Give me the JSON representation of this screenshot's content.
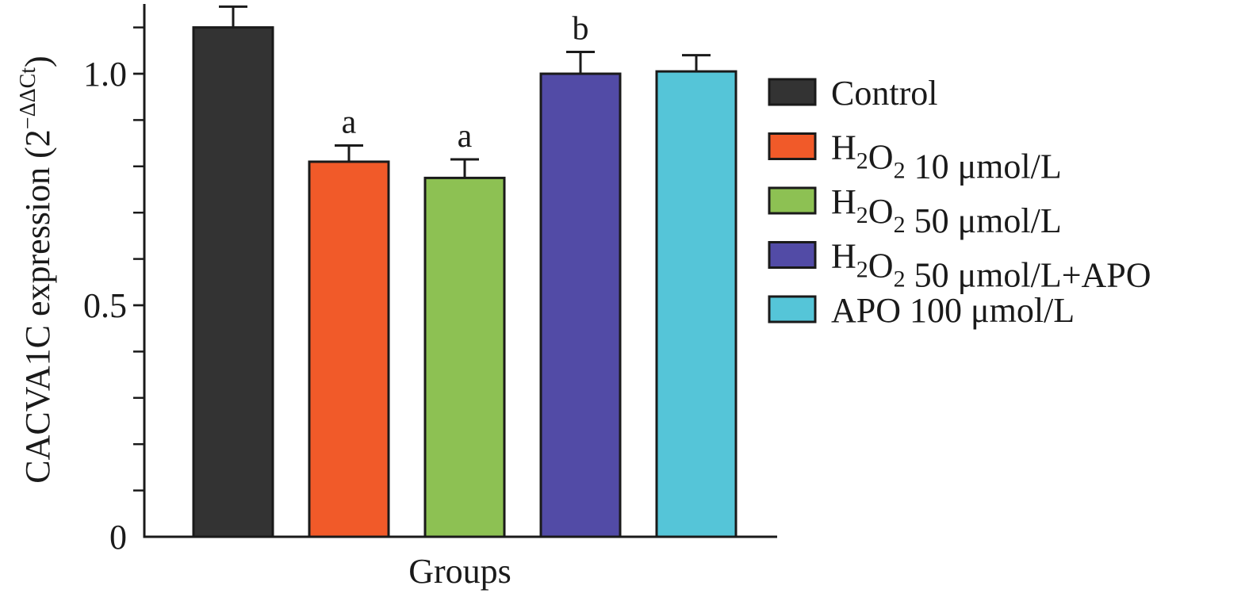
{
  "chart_data": {
    "type": "bar",
    "xlabel": "Groups",
    "ylabel": "CACVA1C expression (2",
    "ylabel_superscript": "−ΔΔCt",
    "ylim": [
      0,
      1.1
    ],
    "yticks": [
      {
        "value": 0,
        "label": "0"
      },
      {
        "value": 0.5,
        "label": "0.5"
      },
      {
        "value": 1.0,
        "label": "1.0"
      }
    ],
    "minor_tick_step": 0.1,
    "grid": false,
    "legend_position": "right",
    "series": [
      {
        "name": "Control",
        "value": 1.1,
        "error": 0.045,
        "color": "#333333",
        "annotation": ""
      },
      {
        "name": "H2O2 10 μmol/L",
        "value": 0.81,
        "error": 0.035,
        "color": "#f15a29",
        "annotation": "a"
      },
      {
        "name": "H2O2 50 μmol/L",
        "value": 0.775,
        "error": 0.04,
        "color": "#8dc153",
        "annotation": "a"
      },
      {
        "name": "H2O2 50 μmol/L+APO",
        "value": 1.0,
        "error": 0.047,
        "color": "#524ba6",
        "annotation": "b"
      },
      {
        "name": "APO 100 μmol/L",
        "value": 1.005,
        "error": 0.035,
        "color": "#55c5d8",
        "annotation": ""
      }
    ],
    "legend": [
      {
        "parts": [
          {
            "t": "Control",
            "sub": false
          }
        ],
        "color": "#333333"
      },
      {
        "parts": [
          {
            "t": "H",
            "sub": false
          },
          {
            "t": "2",
            "sub": true
          },
          {
            "t": "O",
            "sub": false
          },
          {
            "t": "2",
            "sub": true
          },
          {
            "t": " 10 μmol/L",
            "sub": false
          }
        ],
        "color": "#f15a29"
      },
      {
        "parts": [
          {
            "t": "H",
            "sub": false
          },
          {
            "t": "2",
            "sub": true
          },
          {
            "t": "O",
            "sub": false
          },
          {
            "t": "2",
            "sub": true
          },
          {
            "t": " 50 μmol/L",
            "sub": false
          }
        ],
        "color": "#8dc153"
      },
      {
        "parts": [
          {
            "t": "H",
            "sub": false
          },
          {
            "t": "2",
            "sub": true
          },
          {
            "t": "O",
            "sub": false
          },
          {
            "t": "2",
            "sub": true
          },
          {
            "t": " 50 μmol/L+APO",
            "sub": false
          }
        ],
        "color": "#524ba6"
      },
      {
        "parts": [
          {
            "t": "APO 100 μmol/L",
            "sub": false
          }
        ],
        "color": "#55c5d8"
      }
    ]
  }
}
